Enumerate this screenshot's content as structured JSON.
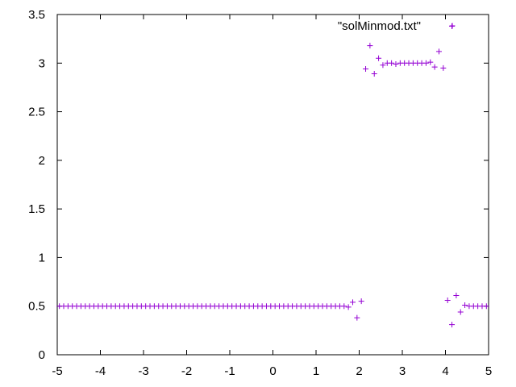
{
  "chart_data": {
    "type": "scatter",
    "xlim": [
      -5,
      5
    ],
    "ylim": [
      0,
      3.5
    ],
    "x_ticks": [
      "-5",
      "-4",
      "-3",
      "-2",
      "-1",
      "0",
      "1",
      "2",
      "3",
      "4",
      "5"
    ],
    "y_ticks": [
      "0",
      "0.5",
      "1",
      "1.5",
      "2",
      "2.5",
      "3",
      "3.5"
    ],
    "grid": false,
    "legend_position": "top-right",
    "marker": "plus",
    "series": [
      {
        "name": "\"solMinmod.txt\"",
        "color": "#9400d3",
        "points": [
          [
            -4.95,
            0.5
          ],
          [
            -4.85,
            0.5
          ],
          [
            -4.75,
            0.5
          ],
          [
            -4.65,
            0.5
          ],
          [
            -4.55,
            0.5
          ],
          [
            -4.45,
            0.5
          ],
          [
            -4.35,
            0.5
          ],
          [
            -4.25,
            0.5
          ],
          [
            -4.15,
            0.5
          ],
          [
            -4.05,
            0.5
          ],
          [
            -3.95,
            0.5
          ],
          [
            -3.85,
            0.5
          ],
          [
            -3.75,
            0.5
          ],
          [
            -3.65,
            0.5
          ],
          [
            -3.55,
            0.5
          ],
          [
            -3.45,
            0.5
          ],
          [
            -3.35,
            0.5
          ],
          [
            -3.25,
            0.5
          ],
          [
            -3.15,
            0.5
          ],
          [
            -3.05,
            0.5
          ],
          [
            -2.95,
            0.5
          ],
          [
            -2.85,
            0.5
          ],
          [
            -2.75,
            0.5
          ],
          [
            -2.65,
            0.5
          ],
          [
            -2.55,
            0.5
          ],
          [
            -2.45,
            0.5
          ],
          [
            -2.35,
            0.5
          ],
          [
            -2.25,
            0.5
          ],
          [
            -2.15,
            0.5
          ],
          [
            -2.05,
            0.5
          ],
          [
            -1.95,
            0.5
          ],
          [
            -1.85,
            0.5
          ],
          [
            -1.75,
            0.5
          ],
          [
            -1.65,
            0.5
          ],
          [
            -1.55,
            0.5
          ],
          [
            -1.45,
            0.5
          ],
          [
            -1.35,
            0.5
          ],
          [
            -1.25,
            0.5
          ],
          [
            -1.15,
            0.5
          ],
          [
            -1.05,
            0.5
          ],
          [
            -0.95,
            0.5
          ],
          [
            -0.85,
            0.5
          ],
          [
            -0.75,
            0.5
          ],
          [
            -0.65,
            0.5
          ],
          [
            -0.55,
            0.5
          ],
          [
            -0.45,
            0.5
          ],
          [
            -0.35,
            0.5
          ],
          [
            -0.25,
            0.5
          ],
          [
            -0.15,
            0.5
          ],
          [
            -0.05,
            0.5
          ],
          [
            0.05,
            0.5
          ],
          [
            0.15,
            0.5
          ],
          [
            0.25,
            0.5
          ],
          [
            0.35,
            0.5
          ],
          [
            0.45,
            0.5
          ],
          [
            0.55,
            0.5
          ],
          [
            0.65,
            0.5
          ],
          [
            0.75,
            0.5
          ],
          [
            0.85,
            0.5
          ],
          [
            0.95,
            0.5
          ],
          [
            1.05,
            0.5
          ],
          [
            1.15,
            0.5
          ],
          [
            1.25,
            0.5
          ],
          [
            1.35,
            0.5
          ],
          [
            1.45,
            0.5
          ],
          [
            1.55,
            0.5
          ],
          [
            1.65,
            0.5
          ],
          [
            1.75,
            0.49
          ],
          [
            1.85,
            0.54
          ],
          [
            1.95,
            0.38
          ],
          [
            2.05,
            0.55
          ],
          [
            2.15,
            2.94
          ],
          [
            2.25,
            3.18
          ],
          [
            2.35,
            2.89
          ],
          [
            2.45,
            3.05
          ],
          [
            2.55,
            2.98
          ],
          [
            2.65,
            3.0
          ],
          [
            2.75,
            3.0
          ],
          [
            2.85,
            2.99
          ],
          [
            2.95,
            3.0
          ],
          [
            3.05,
            3.0
          ],
          [
            3.15,
            3.0
          ],
          [
            3.25,
            3.0
          ],
          [
            3.35,
            3.0
          ],
          [
            3.45,
            3.0
          ],
          [
            3.55,
            3.0
          ],
          [
            3.65,
            3.01
          ],
          [
            3.75,
            2.96
          ],
          [
            3.85,
            3.12
          ],
          [
            3.95,
            2.95
          ],
          [
            4.05,
            0.56
          ],
          [
            4.15,
            0.31
          ],
          [
            4.15,
            3.38
          ],
          [
            4.25,
            0.61
          ],
          [
            4.35,
            0.44
          ],
          [
            4.45,
            0.51
          ],
          [
            4.55,
            0.5
          ],
          [
            4.65,
            0.5
          ],
          [
            4.75,
            0.5
          ],
          [
            4.85,
            0.5
          ],
          [
            4.95,
            0.5
          ]
        ]
      }
    ]
  }
}
